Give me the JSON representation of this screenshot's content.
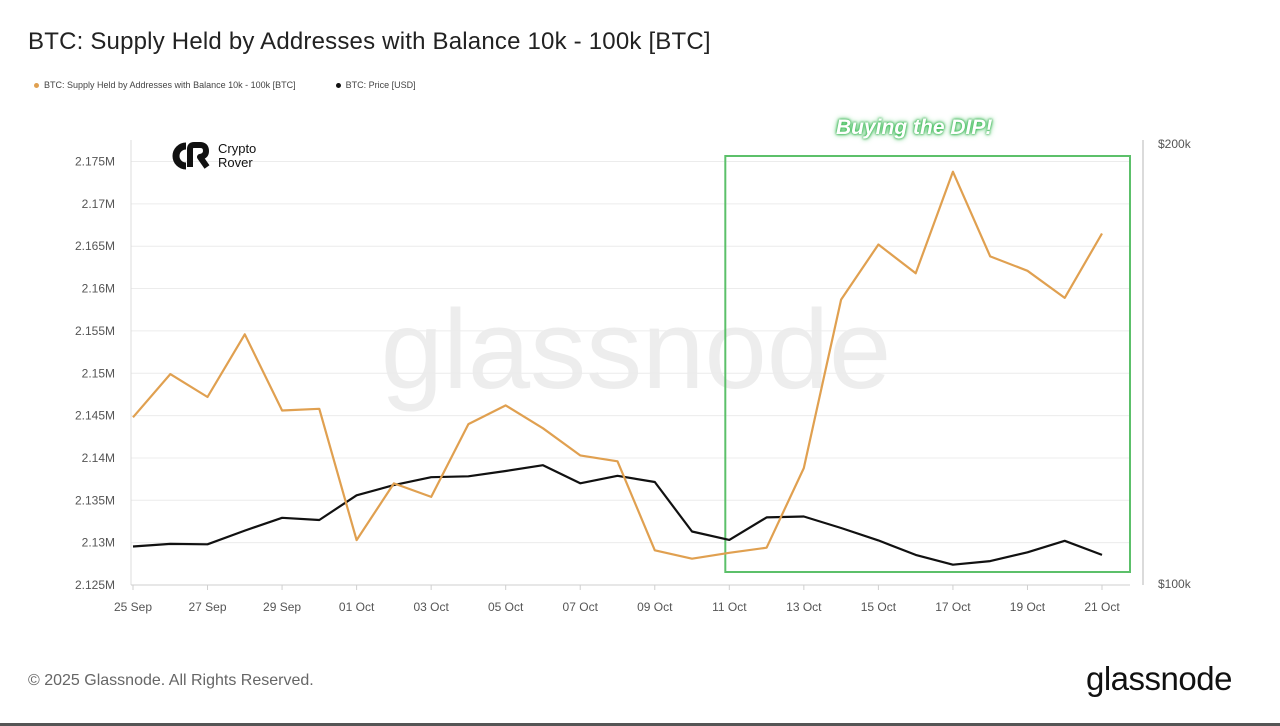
{
  "page": {
    "title": "BTC: Supply Held by Addresses with Balance 10k - 100k [BTC]",
    "footer_copyright": "© 2025 Glassnode. All Rights Reserved.",
    "footer_brand": "glassnode",
    "watermark": "glassnode",
    "badge_line1": "Crypto",
    "badge_line2": "Rover",
    "annotation": "Buying the DIP!"
  },
  "colors": {
    "supply": "#e0a050",
    "price": "#111111",
    "highlight_box": "#5cc06a",
    "grid": "#ececec",
    "axis_text": "#555555"
  },
  "chart_data": {
    "type": "line",
    "title": "BTC: Supply Held by Addresses with Balance 10k - 100k [BTC]",
    "x": [
      "25 Sep",
      "26 Sep",
      "27 Sep",
      "28 Sep",
      "29 Sep",
      "30 Sep",
      "01 Oct",
      "02 Oct",
      "03 Oct",
      "04 Oct",
      "05 Oct",
      "06 Oct",
      "07 Oct",
      "08 Oct",
      "09 Oct",
      "10 Oct",
      "11 Oct",
      "12 Oct",
      "13 Oct",
      "14 Oct",
      "15 Oct",
      "16 Oct",
      "17 Oct",
      "18 Oct",
      "19 Oct",
      "20 Oct",
      "21 Oct"
    ],
    "x_tick_labels": [
      "25 Sep",
      "27 Sep",
      "29 Sep",
      "01 Oct",
      "03 Oct",
      "05 Oct",
      "07 Oct",
      "09 Oct",
      "11 Oct",
      "13 Oct",
      "15 Oct",
      "17 Oct",
      "19 Oct",
      "21 Oct"
    ],
    "series": [
      {
        "name": "BTC: Supply Held by Addresses with Balance 10k - 100k [BTC]",
        "axis": "left",
        "values": [
          2144.8,
          2149.9,
          2147.2,
          2154.6,
          2145.6,
          2145.8,
          2130.3,
          2137.0,
          2135.4,
          2144.0,
          2146.2,
          2143.5,
          2140.3,
          2139.6,
          2129.1,
          2128.1,
          2128.8,
          2129.4,
          2138.8,
          2158.7,
          2165.2,
          2161.8,
          2173.8,
          2163.8,
          2162.1,
          2158.9,
          2166.5
        ]
      },
      {
        "name": "BTC: Price [USD]",
        "axis": "right",
        "values": [
          108700,
          109300,
          109200,
          112300,
          115200,
          114700,
          120300,
          122600,
          124400,
          124600,
          125800,
          127100,
          123000,
          124700,
          123300,
          112100,
          110200,
          115300,
          115500,
          112900,
          110100,
          106800,
          104600,
          105400,
          107400,
          110000,
          106800
        ]
      }
    ],
    "y_left": {
      "ticks": [
        "2.175M",
        "2.17M",
        "2.165M",
        "2.16M",
        "2.155M",
        "2.15M",
        "2.145M",
        "2.14M",
        "2.135M",
        "2.13M",
        "2.125M"
      ],
      "range": [
        2125,
        2176
      ],
      "unit": "thousand BTC"
    },
    "y_right": {
      "ticks": [
        "$200k",
        "$100k"
      ],
      "range": [
        100000,
        200000
      ]
    },
    "highlight": {
      "from": "11 Oct",
      "to": "21 Oct",
      "label": "Buying the DIP!"
    },
    "grid": true,
    "legend_position": "top-left"
  }
}
